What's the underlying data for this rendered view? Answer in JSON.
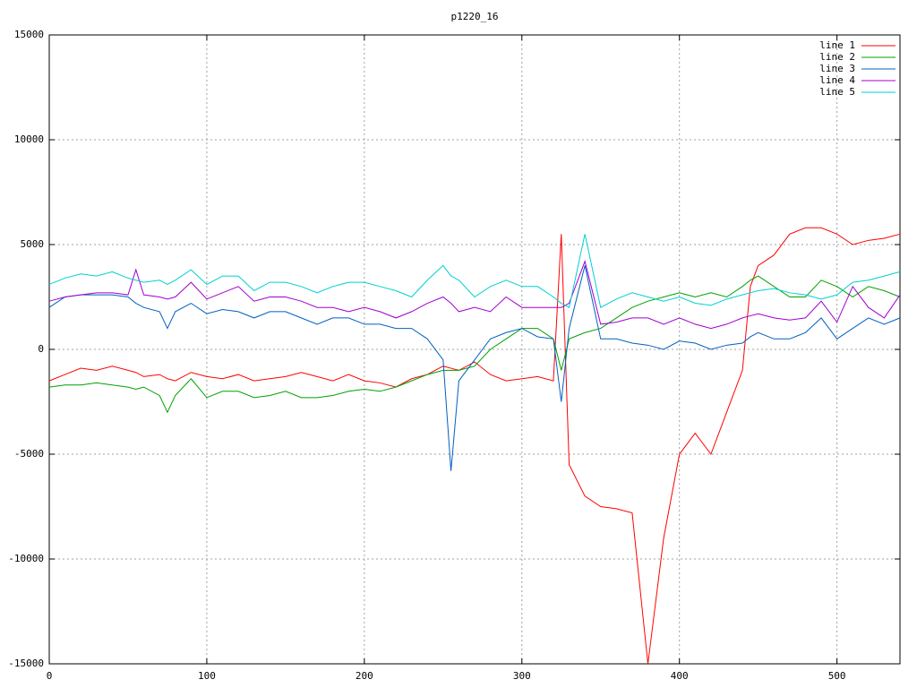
{
  "chart_data": {
    "type": "line",
    "title": "p1220_16",
    "x": [
      0,
      10,
      20,
      30,
      40,
      50,
      55,
      60,
      70,
      75,
      80,
      90,
      100,
      110,
      120,
      130,
      140,
      150,
      160,
      170,
      180,
      190,
      200,
      210,
      220,
      230,
      240,
      250,
      255,
      260,
      270,
      280,
      290,
      300,
      310,
      320,
      325,
      330,
      340,
      350,
      360,
      370,
      380,
      390,
      400,
      410,
      420,
      430,
      440,
      445,
      450,
      460,
      470,
      480,
      490,
      500,
      510,
      520,
      530,
      540
    ],
    "series": [
      {
        "name": "line 1",
        "color": "#ff0000",
        "values": [
          -1500,
          -1200,
          -900,
          -1000,
          -800,
          -1000,
          -1100,
          -1300,
          -1200,
          -1400,
          -1500,
          -1100,
          -1300,
          -1400,
          -1200,
          -1500,
          -1400,
          -1300,
          -1100,
          -1300,
          -1500,
          -1200,
          -1500,
          -1600,
          -1800,
          -1400,
          -1200,
          -800,
          -900,
          -1000,
          -600,
          -1200,
          -1500,
          -1400,
          -1300,
          -1500,
          5500,
          -5500,
          -7000,
          -7500,
          -7600,
          -7800,
          -15000,
          -9000,
          -5000,
          -4000,
          -5000,
          -3000,
          -1000,
          3000,
          4000,
          4500,
          5500,
          5800,
          5800,
          5500,
          5000,
          5200,
          5300,
          5500
        ]
      },
      {
        "name": "line 2",
        "color": "#00a000",
        "values": [
          -1800,
          -1700,
          -1700,
          -1600,
          -1700,
          -1800,
          -1900,
          -1800,
          -2200,
          -3000,
          -2200,
          -1400,
          -2300,
          -2000,
          -2000,
          -2300,
          -2200,
          -2000,
          -2300,
          -2300,
          -2200,
          -2000,
          -1900,
          -2000,
          -1800,
          -1500,
          -1200,
          -1000,
          -1000,
          -1000,
          -800,
          0,
          500,
          1000,
          1000,
          500,
          -1000,
          500,
          800,
          1000,
          1500,
          2000,
          2300,
          2500,
          2700,
          2500,
          2700,
          2500,
          3000,
          3300,
          3500,
          3000,
          2500,
          2500,
          3300,
          3000,
          2500,
          3000,
          2800,
          2500
        ]
      },
      {
        "name": "line 3",
        "color": "#0060c0",
        "values": [
          2000,
          2500,
          2600,
          2600,
          2600,
          2500,
          2200,
          2000,
          1800,
          1000,
          1800,
          2200,
          1700,
          1900,
          1800,
          1500,
          1800,
          1800,
          1500,
          1200,
          1500,
          1500,
          1200,
          1200,
          1000,
          1000,
          500,
          -500,
          -5800,
          -1500,
          -500,
          500,
          800,
          1000,
          600,
          500,
          -2500,
          1000,
          4000,
          500,
          500,
          300,
          200,
          0,
          400,
          300,
          0,
          200,
          300,
          600,
          800,
          500,
          500,
          800,
          1500,
          500,
          1000,
          1500,
          1200,
          1500
        ]
      },
      {
        "name": "line 4",
        "color": "#a000d0",
        "values": [
          2300,
          2500,
          2600,
          2700,
          2700,
          2600,
          3800,
          2600,
          2500,
          2400,
          2500,
          3200,
          2400,
          2700,
          3000,
          2300,
          2500,
          2500,
          2300,
          2000,
          2000,
          1800,
          2000,
          1800,
          1500,
          1800,
          2200,
          2500,
          2200,
          1800,
          2000,
          1800,
          2500,
          2000,
          2000,
          2000,
          2000,
          2200,
          4200,
          1200,
          1300,
          1500,
          1500,
          1200,
          1500,
          1200,
          1000,
          1200,
          1500,
          1600,
          1700,
          1500,
          1400,
          1500,
          2300,
          1300,
          3000,
          2000,
          1500,
          2600
        ]
      },
      {
        "name": "line 5",
        "color": "#00d0d0",
        "values": [
          3100,
          3400,
          3600,
          3500,
          3700,
          3400,
          3300,
          3200,
          3300,
          3100,
          3300,
          3800,
          3100,
          3500,
          3500,
          2800,
          3200,
          3200,
          3000,
          2700,
          3000,
          3200,
          3200,
          3000,
          2800,
          2500,
          3300,
          4000,
          3500,
          3300,
          2500,
          3000,
          3300,
          3000,
          3000,
          2500,
          2200,
          2000,
          5500,
          2000,
          2400,
          2700,
          2500,
          2300,
          2500,
          2200,
          2100,
          2400,
          2600,
          2700,
          2800,
          2900,
          2700,
          2600,
          2400,
          2600,
          3200,
          3300,
          3500,
          3700
        ]
      }
    ],
    "xlim": [
      0,
      540
    ],
    "xticks": [
      0,
      100,
      200,
      300,
      400,
      500
    ],
    "ylim": [
      -15000,
      15000
    ],
    "yticks": [
      -15000,
      -10000,
      -5000,
      0,
      5000,
      10000,
      15000
    ],
    "grid": true,
    "legend": "top-right"
  }
}
